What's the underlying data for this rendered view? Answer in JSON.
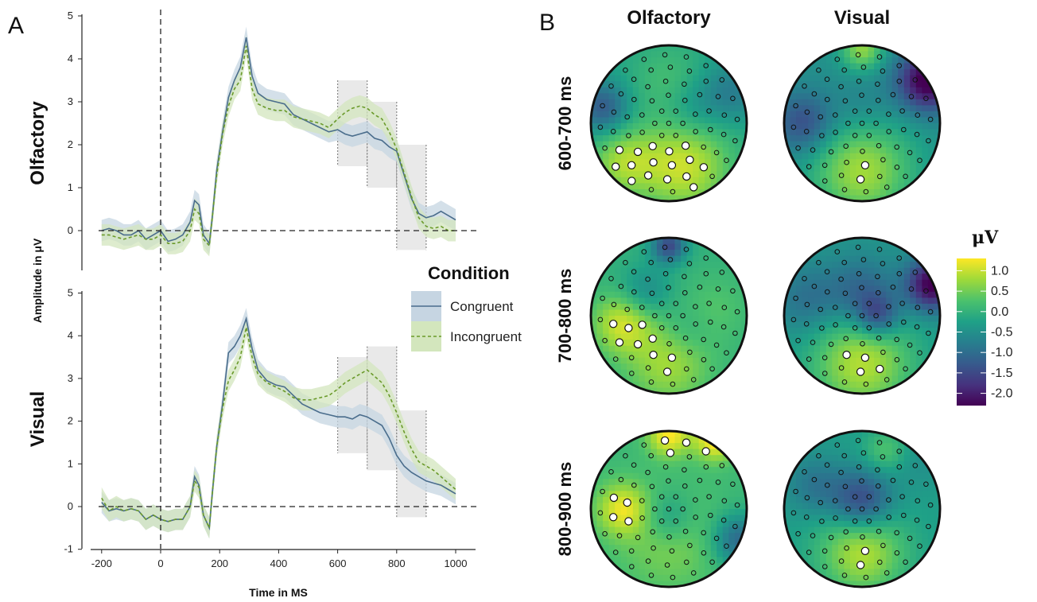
{
  "panels": {
    "a_letter": "A",
    "b_letter": "B"
  },
  "chart_data": [
    {
      "type": "line",
      "panel": "A",
      "facets": [
        "Olfactory",
        "Visual"
      ],
      "xlabel": "Time in MS",
      "ylabel": "Amplitude in μV",
      "xlim": [
        -220,
        1010
      ],
      "x_ticks": [
        -200,
        0,
        200,
        400,
        600,
        800,
        1000
      ],
      "x_tick_labels": [
        "-200",
        "0",
        "200",
        "400",
        "600",
        "800",
        "1000"
      ],
      "ylim_olfactory": [
        -1,
        5
      ],
      "y_ticks_olfactory": [
        0,
        1,
        2,
        3,
        4,
        5
      ],
      "ylim_visual": [
        -1,
        5
      ],
      "y_ticks_visual": [
        -1,
        0,
        1,
        2,
        3,
        4,
        5
      ],
      "vline_x": 0,
      "hline_y": 0,
      "legend": {
        "title": "Condition",
        "placement": "right",
        "entries": [
          {
            "name": "Congruent",
            "color": "#4a6d8c",
            "band": "#c6d5e2",
            "dash": "solid"
          },
          {
            "name": "Incongruent",
            "color": "#6a9a2a",
            "band": "#d3e6bd",
            "dash": "dashed"
          }
        ]
      },
      "highlight_windows": [
        {
          "facet": "Olfactory",
          "x": [
            600,
            700
          ],
          "y": [
            1.5,
            3.5
          ]
        },
        {
          "facet": "Olfactory",
          "x": [
            700,
            800
          ],
          "y": [
            1.0,
            3.0
          ]
        },
        {
          "facet": "Olfactory",
          "x": [
            800,
            900
          ],
          "y": [
            -0.45,
            2.0
          ]
        },
        {
          "facet": "Visual",
          "x": [
            600,
            700
          ],
          "y": [
            1.25,
            3.5
          ]
        },
        {
          "facet": "Visual",
          "x": [
            700,
            800
          ],
          "y": [
            0.85,
            3.75
          ]
        },
        {
          "facet": "Visual",
          "x": [
            800,
            900
          ],
          "y": [
            -0.25,
            2.25
          ]
        }
      ],
      "x": [
        -200,
        -175,
        -150,
        -125,
        -100,
        -75,
        -50,
        -25,
        0,
        25,
        50,
        75,
        100,
        115,
        130,
        145,
        165,
        175,
        190,
        210,
        230,
        250,
        270,
        290,
        310,
        330,
        360,
        390,
        420,
        450,
        480,
        510,
        540,
        570,
        600,
        625,
        650,
        675,
        700,
        725,
        750,
        775,
        800,
        825,
        850,
        875,
        900,
        925,
        950,
        975,
        1000
      ],
      "series": [
        {
          "facet": "Olfactory",
          "name": "Congruent",
          "band_halfwidth": 0.25,
          "values": [
            0.0,
            0.05,
            0.0,
            -0.1,
            -0.1,
            0.0,
            -0.2,
            -0.1,
            0.0,
            -0.25,
            -0.2,
            -0.1,
            0.2,
            0.7,
            0.6,
            -0.1,
            -0.3,
            0.3,
            1.4,
            2.3,
            3.1,
            3.5,
            3.8,
            4.5,
            3.6,
            3.2,
            3.05,
            3.0,
            2.95,
            2.7,
            2.6,
            2.5,
            2.4,
            2.3,
            2.35,
            2.25,
            2.2,
            2.25,
            2.3,
            2.15,
            2.1,
            1.95,
            1.85,
            1.3,
            0.75,
            0.4,
            0.3,
            0.35,
            0.45,
            0.35,
            0.25
          ]
        },
        {
          "facet": "Olfactory",
          "name": "Incongruent",
          "band_halfwidth": 0.25,
          "values": [
            -0.1,
            -0.1,
            -0.15,
            -0.2,
            -0.15,
            -0.1,
            -0.2,
            -0.2,
            -0.1,
            -0.3,
            -0.3,
            -0.25,
            0.0,
            0.5,
            0.4,
            -0.2,
            -0.35,
            0.3,
            1.3,
            2.25,
            2.9,
            3.3,
            3.5,
            4.3,
            3.3,
            2.95,
            2.85,
            2.8,
            2.8,
            2.65,
            2.6,
            2.55,
            2.5,
            2.4,
            2.6,
            2.75,
            2.85,
            2.9,
            2.85,
            2.7,
            2.6,
            2.3,
            1.9,
            1.35,
            0.8,
            0.3,
            0.1,
            0.05,
            0.1,
            0.0,
            0.0
          ]
        },
        {
          "facet": "Visual",
          "name": "Congruent",
          "band_halfwidth": 0.25,
          "values": [
            0.1,
            -0.1,
            -0.05,
            -0.1,
            -0.05,
            -0.1,
            -0.3,
            -0.2,
            -0.3,
            -0.35,
            -0.3,
            -0.3,
            0.0,
            0.7,
            0.5,
            -0.2,
            -0.5,
            0.3,
            1.4,
            2.4,
            3.6,
            3.75,
            4.0,
            4.4,
            3.7,
            3.2,
            2.95,
            2.85,
            2.8,
            2.6,
            2.4,
            2.3,
            2.2,
            2.15,
            2.1,
            2.1,
            2.05,
            2.15,
            2.1,
            2.0,
            1.9,
            1.6,
            1.2,
            0.95,
            0.8,
            0.7,
            0.6,
            0.55,
            0.5,
            0.4,
            0.3
          ]
        },
        {
          "facet": "Visual",
          "name": "Incongruent",
          "band_halfwidth": 0.25,
          "values": [
            0.2,
            -0.1,
            0.0,
            -0.1,
            -0.05,
            -0.1,
            -0.3,
            -0.2,
            -0.3,
            -0.35,
            -0.3,
            -0.3,
            0.0,
            0.6,
            0.45,
            -0.2,
            -0.5,
            0.3,
            1.4,
            2.3,
            2.95,
            3.2,
            3.5,
            4.2,
            3.5,
            3.1,
            2.9,
            2.8,
            2.7,
            2.55,
            2.5,
            2.5,
            2.55,
            2.6,
            2.75,
            2.9,
            3.0,
            3.1,
            3.2,
            3.05,
            2.9,
            2.6,
            2.2,
            1.75,
            1.35,
            1.05,
            0.95,
            0.85,
            0.7,
            0.55,
            0.4
          ]
        }
      ]
    },
    {
      "type": "heatmap",
      "panel": "B",
      "columns": [
        "Olfactory",
        "Visual"
      ],
      "rows": [
        "600-700 ms",
        "700-800 ms",
        "800-900 ms"
      ],
      "colorbar": {
        "title": "μV",
        "ticks": [
          1.0,
          0.5,
          0.0,
          -0.5,
          -1.0,
          -1.5,
          -2.0
        ],
        "tick_labels": [
          "1.0",
          "0.5",
          "0.0",
          "-0.5",
          "-1.0",
          "-1.5",
          "-2.0"
        ],
        "range": [
          -2.3,
          1.3
        ],
        "palette": "viridis"
      }
    }
  ]
}
